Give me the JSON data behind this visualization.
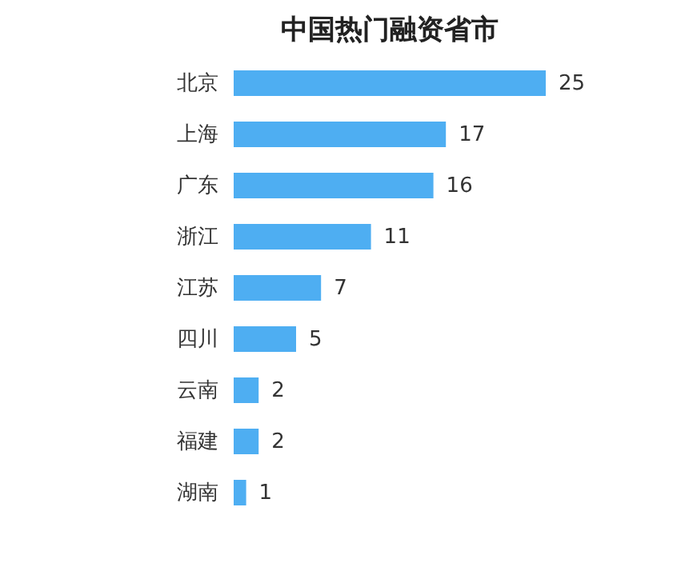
{
  "chart_data": {
    "type": "bar",
    "orientation": "horizontal",
    "title": "中国热门融资省市",
    "categories": [
      "北京",
      "上海",
      "广东",
      "浙江",
      "江苏",
      "四川",
      "云南",
      "福建",
      "湖南"
    ],
    "values": [
      25,
      17,
      16,
      11,
      7,
      5,
      2,
      2,
      1
    ],
    "color": "#4eaef2",
    "data_labels": true
  }
}
